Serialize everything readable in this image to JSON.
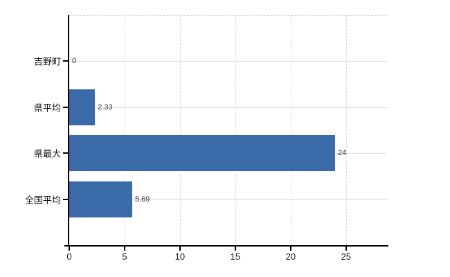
{
  "chart_data": {
    "type": "bar",
    "orientation": "horizontal",
    "title": "",
    "xlabel": "",
    "ylabel": "",
    "categories": [
      "吉野町",
      "県平均",
      "県最大",
      "全国平均"
    ],
    "values": [
      0,
      2.33,
      24,
      5.69
    ],
    "value_labels": [
      "0",
      "2.33",
      "24",
      "5.69"
    ],
    "xticks": [
      0,
      5,
      10,
      15,
      20,
      25
    ],
    "xtick_labels": [
      "0",
      "5",
      "10",
      "15",
      "20",
      "25"
    ],
    "xlim": [
      0,
      28.7
    ],
    "grid": true,
    "legend": false,
    "colors": {
      "bar": "#3a6aa8",
      "vertical_gridline": "#d8d6d6",
      "horizontal_gridline": "#d7ddd5",
      "axis": "#000000",
      "category_text": "#111111",
      "tick_text": "#1a1a1a",
      "value_text": "#333333",
      "background": "#ffffff"
    }
  }
}
